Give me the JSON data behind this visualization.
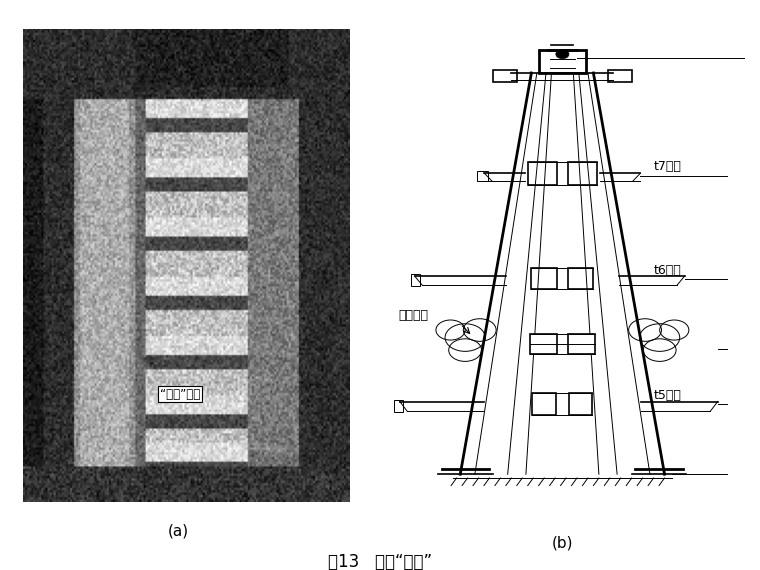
{
  "figure_title": "图13   预留“活节”",
  "panel_a_label": "(a)",
  "panel_b_label": "(b)",
  "label_t7": "t7节柱",
  "label_t6": "t6节柱",
  "label_t5": "t5节柱",
  "label_yuliu": "预留活节",
  "label_huojie": "“活节”预留",
  "bg_color": "#ffffff",
  "text_color": "#000000",
  "line_color": "#000000"
}
